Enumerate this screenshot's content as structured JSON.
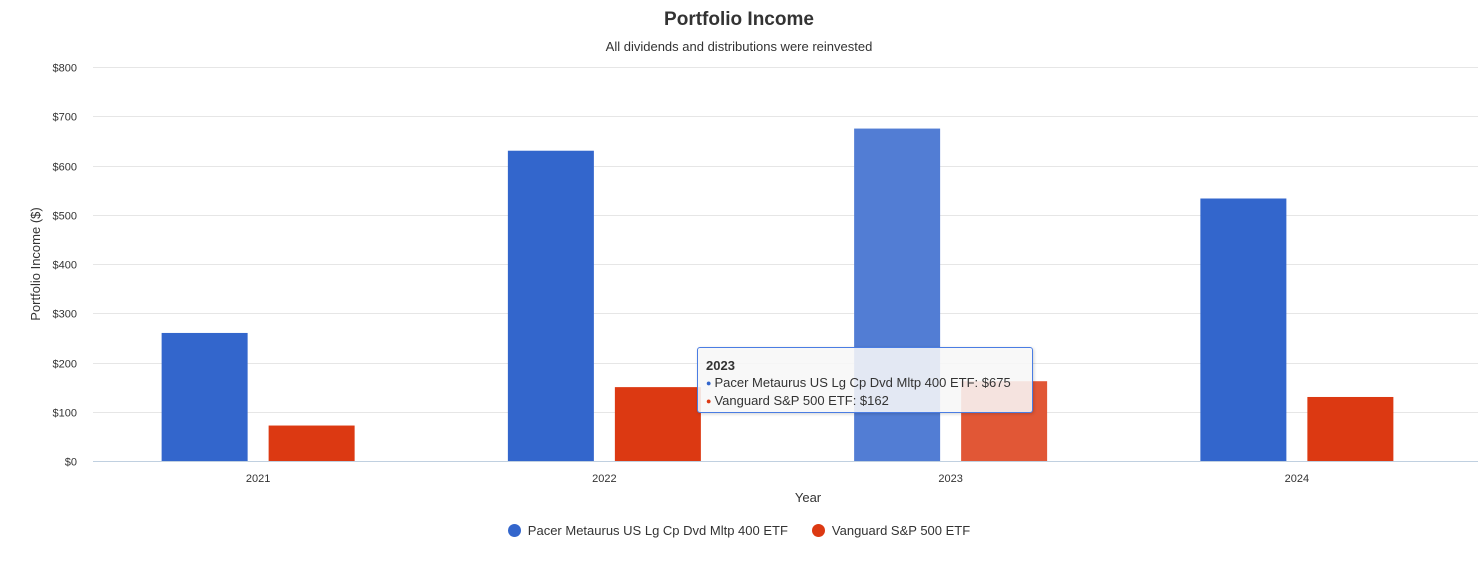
{
  "chart_data": {
    "type": "bar",
    "title": "Portfolio Income",
    "subtitle": "All dividends and distributions were reinvested",
    "xlabel": "Year",
    "ylabel": "Portfolio Income ($)",
    "categories": [
      "2021",
      "2022",
      "2023",
      "2024"
    ],
    "ylim": [
      0,
      800
    ],
    "yticks": [
      "$0",
      "$100",
      "$200",
      "$300",
      "$400",
      "$500",
      "$600",
      "$700",
      "$800"
    ],
    "grid": true,
    "legend_position": "bottom-center",
    "series": [
      {
        "name": "Pacer Metaurus US Lg Cp Dvd Mltp 400 ETF",
        "color": "#3366cc",
        "values": [
          260,
          630,
          675,
          533
        ]
      },
      {
        "name": "Vanguard S&P 500 ETF",
        "color": "#dc3912",
        "values": [
          72,
          150,
          162,
          130
        ]
      }
    ],
    "highlight_category_index": 2,
    "tooltip": {
      "title": "2023",
      "lines": [
        "Pacer Metaurus US Lg Cp Dvd Mltp 400 ETF: $675",
        "Vanguard S&P 500 ETF: $162"
      ]
    }
  }
}
